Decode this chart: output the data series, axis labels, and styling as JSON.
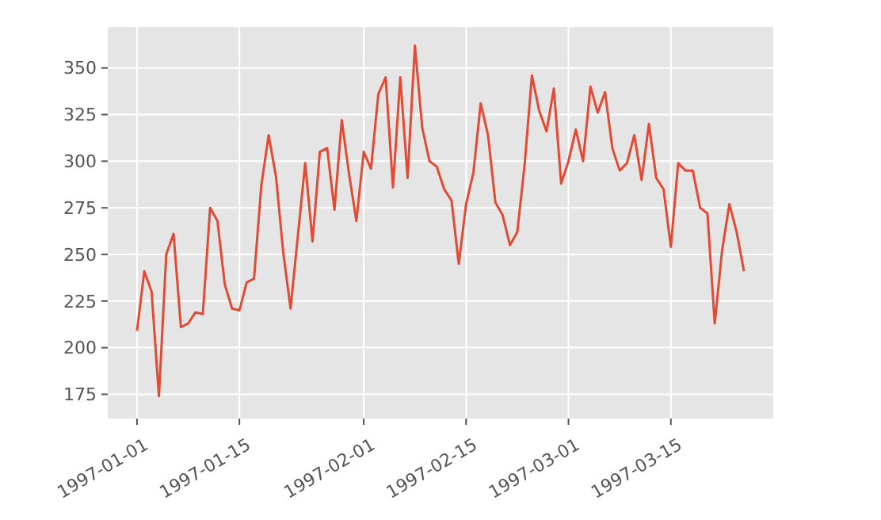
{
  "chart_data": {
    "type": "line",
    "x": [
      "1997-01-01",
      "1997-01-02",
      "1997-01-03",
      "1997-01-04",
      "1997-01-05",
      "1997-01-06",
      "1997-01-07",
      "1997-01-08",
      "1997-01-09",
      "1997-01-10",
      "1997-01-11",
      "1997-01-12",
      "1997-01-13",
      "1997-01-14",
      "1997-01-15",
      "1997-01-16",
      "1997-01-17",
      "1997-01-18",
      "1997-01-19",
      "1997-01-20",
      "1997-01-21",
      "1997-01-22",
      "1997-01-23",
      "1997-01-24",
      "1997-01-25",
      "1997-01-26",
      "1997-01-27",
      "1997-01-28",
      "1997-01-29",
      "1997-01-30",
      "1997-01-31",
      "1997-02-01",
      "1997-02-02",
      "1997-02-03",
      "1997-02-04",
      "1997-02-05",
      "1997-02-06",
      "1997-02-07",
      "1997-02-08",
      "1997-02-09",
      "1997-02-10",
      "1997-02-11",
      "1997-02-12",
      "1997-02-13",
      "1997-02-14",
      "1997-02-15",
      "1997-02-16",
      "1997-02-17",
      "1997-02-18",
      "1997-02-19",
      "1997-02-20",
      "1997-02-21",
      "1997-02-22",
      "1997-02-23",
      "1997-02-24",
      "1997-02-25",
      "1997-02-26",
      "1997-02-27",
      "1997-02-28",
      "1997-03-01",
      "1997-03-02",
      "1997-03-03",
      "1997-03-04",
      "1997-03-05",
      "1997-03-06",
      "1997-03-07",
      "1997-03-08",
      "1997-03-09",
      "1997-03-10",
      "1997-03-11",
      "1997-03-12",
      "1997-03-13",
      "1997-03-14",
      "1997-03-15",
      "1997-03-16",
      "1997-03-17",
      "1997-03-18",
      "1997-03-19",
      "1997-03-20",
      "1997-03-21",
      "1997-03-22",
      "1997-03-23",
      "1997-03-24",
      "1997-03-25"
    ],
    "series": [
      {
        "color": "#e24a33",
        "values": [
          209,
          241,
          230,
          174,
          250,
          261,
          211,
          213,
          219,
          218,
          275,
          268,
          234,
          221,
          220,
          235,
          237,
          287,
          314,
          292,
          251,
          221,
          260,
          299,
          257,
          305,
          307,
          274,
          322,
          293,
          268,
          305,
          296,
          336,
          345,
          286,
          345,
          291,
          362,
          318,
          300,
          297,
          285,
          279,
          245,
          277,
          294,
          331,
          314,
          278,
          271,
          255,
          262,
          298,
          346,
          327,
          316,
          339,
          288,
          300,
          317,
          300,
          340,
          326,
          337,
          307,
          295,
          299,
          314,
          290,
          320,
          291,
          285,
          254,
          299,
          295,
          295,
          275,
          272,
          213,
          252,
          277,
          262,
          241
        ]
      }
    ],
    "xlim": [
      "1996-12-28",
      "1997-03-29"
    ],
    "xticks": [
      "1997-01-01",
      "1997-01-15",
      "1997-02-01",
      "1997-02-15",
      "1997-03-01",
      "1997-03-15"
    ],
    "ylim": [
      162,
      372
    ],
    "yticks": [
      175,
      200,
      225,
      250,
      275,
      300,
      325,
      350
    ],
    "grid": true
  }
}
